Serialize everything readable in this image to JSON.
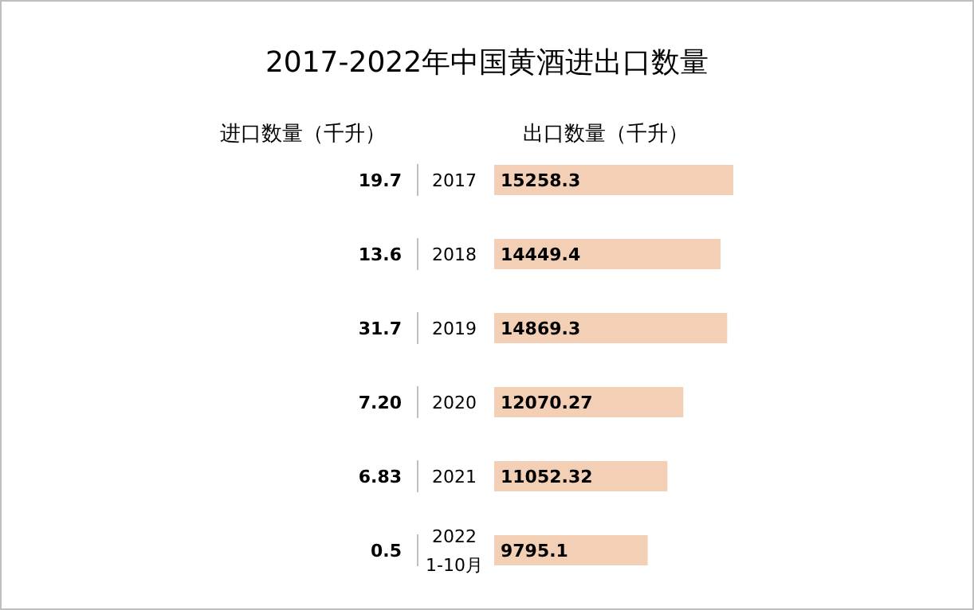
{
  "chart_data": {
    "type": "bar",
    "orientation": "horizontal",
    "title": "2017-2022年中国黄酒进出口数量",
    "categories": [
      "2017",
      "2018",
      "2019",
      "2020",
      "2021",
      "2022\n1-10月"
    ],
    "series": [
      {
        "name": "进口数量（千升）",
        "values": [
          19.7,
          13.6,
          31.7,
          7.2,
          6.83,
          0.5
        ],
        "value_labels": [
          "19.7",
          "13.6",
          "31.7",
          "7.20",
          "6.83",
          "0.5"
        ]
      },
      {
        "name": "出口数量（千升）",
        "color": "#f2cfb5",
        "values": [
          15258.3,
          14449.4,
          14869.3,
          12070.27,
          11052.32,
          9795.1
        ],
        "value_labels": [
          "15258.3",
          "14449.4",
          "14869.3",
          "12070.27",
          "11052.32",
          "9795.1"
        ]
      }
    ]
  }
}
